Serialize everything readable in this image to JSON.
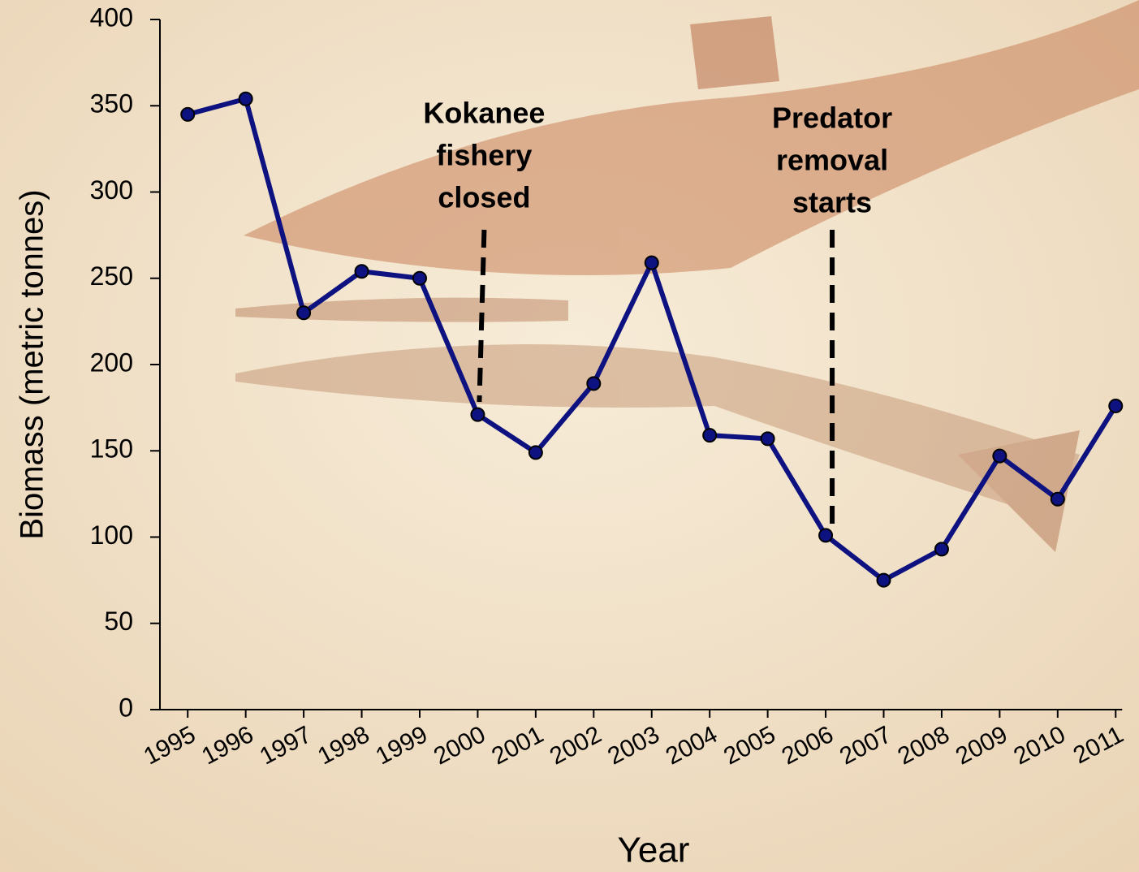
{
  "chart_data": {
    "type": "line",
    "categories": [
      "1995",
      "1996",
      "1997",
      "1998",
      "1999",
      "2000",
      "2001",
      "2002",
      "2003",
      "2004",
      "2005",
      "2006",
      "2007",
      "2008",
      "2009",
      "2010",
      "2011"
    ],
    "series": [
      {
        "color": "#0d1280",
        "values": [
          345,
          354,
          230,
          254,
          250,
          171,
          149,
          189,
          259,
          159,
          157,
          101,
          75,
          93,
          147,
          122,
          176
        ]
      }
    ],
    "ylim": [
      0,
      400
    ],
    "yticks": [
      0,
      50,
      100,
      150,
      200,
      250,
      300,
      350,
      400
    ],
    "ylabel": "Biomass (metric tonnes)",
    "xlabel": "Year",
    "annotations": [
      {
        "lines": [
          "Kokanee",
          "fishery",
          "closed"
        ],
        "x": "2000"
      },
      {
        "lines": [
          "Predator",
          "removal",
          "starts"
        ],
        "x": "2006"
      }
    ]
  }
}
